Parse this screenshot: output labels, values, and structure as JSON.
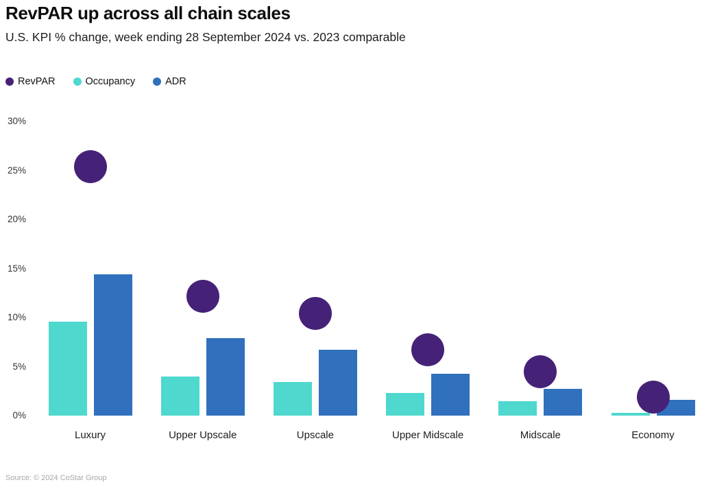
{
  "header": {
    "title": "RevPAR up across all chain scales",
    "subtitle": "U.S. KPI % change, week ending 28 September 2024 vs. 2023 comparable"
  },
  "legend": [
    {
      "label": "RevPAR",
      "color": "#452277",
      "icon": "legend-dot-purple"
    },
    {
      "label": "Occupancy",
      "color": "#4ed8ce",
      "icon": "legend-dot-teal"
    },
    {
      "label": "ADR",
      "color": "#3070bd",
      "icon": "legend-dot-blue"
    }
  ],
  "footer": {
    "source": "Source: © 2024 CoStar Group"
  },
  "chart_data": {
    "type": "bar",
    "subtype": "grouped bars with scatter dots for RevPAR",
    "categories": [
      "Luxury",
      "Upper Upscale",
      "Upscale",
      "Upper Midscale",
      "Midscale",
      "Economy"
    ],
    "series": [
      {
        "name": "RevPAR",
        "mark": "dot",
        "color": "#452277",
        "values": [
          25.4,
          12.2,
          10.4,
          6.7,
          4.5,
          1.9
        ]
      },
      {
        "name": "Occupancy",
        "mark": "bar",
        "color": "#4ed8ce",
        "values": [
          9.6,
          4.0,
          3.4,
          2.3,
          1.5,
          0.3
        ]
      },
      {
        "name": "ADR",
        "mark": "bar",
        "color": "#3070bd",
        "values": [
          14.4,
          7.9,
          6.7,
          4.3,
          2.7,
          1.6
        ]
      }
    ],
    "title": "RevPAR up across all chain scales",
    "subtitle": "U.S. KPI % change, week ending 28 September 2024 vs. 2023 comparable",
    "xlabel": "",
    "ylabel": "",
    "ylim": [
      0,
      30
    ],
    "yticks": [
      0,
      5,
      10,
      15,
      20,
      25,
      30
    ],
    "ytick_format": "{v}%",
    "grid": false,
    "legend_position": "top-left",
    "source": "Source: © 2024 CoStar Group"
  }
}
